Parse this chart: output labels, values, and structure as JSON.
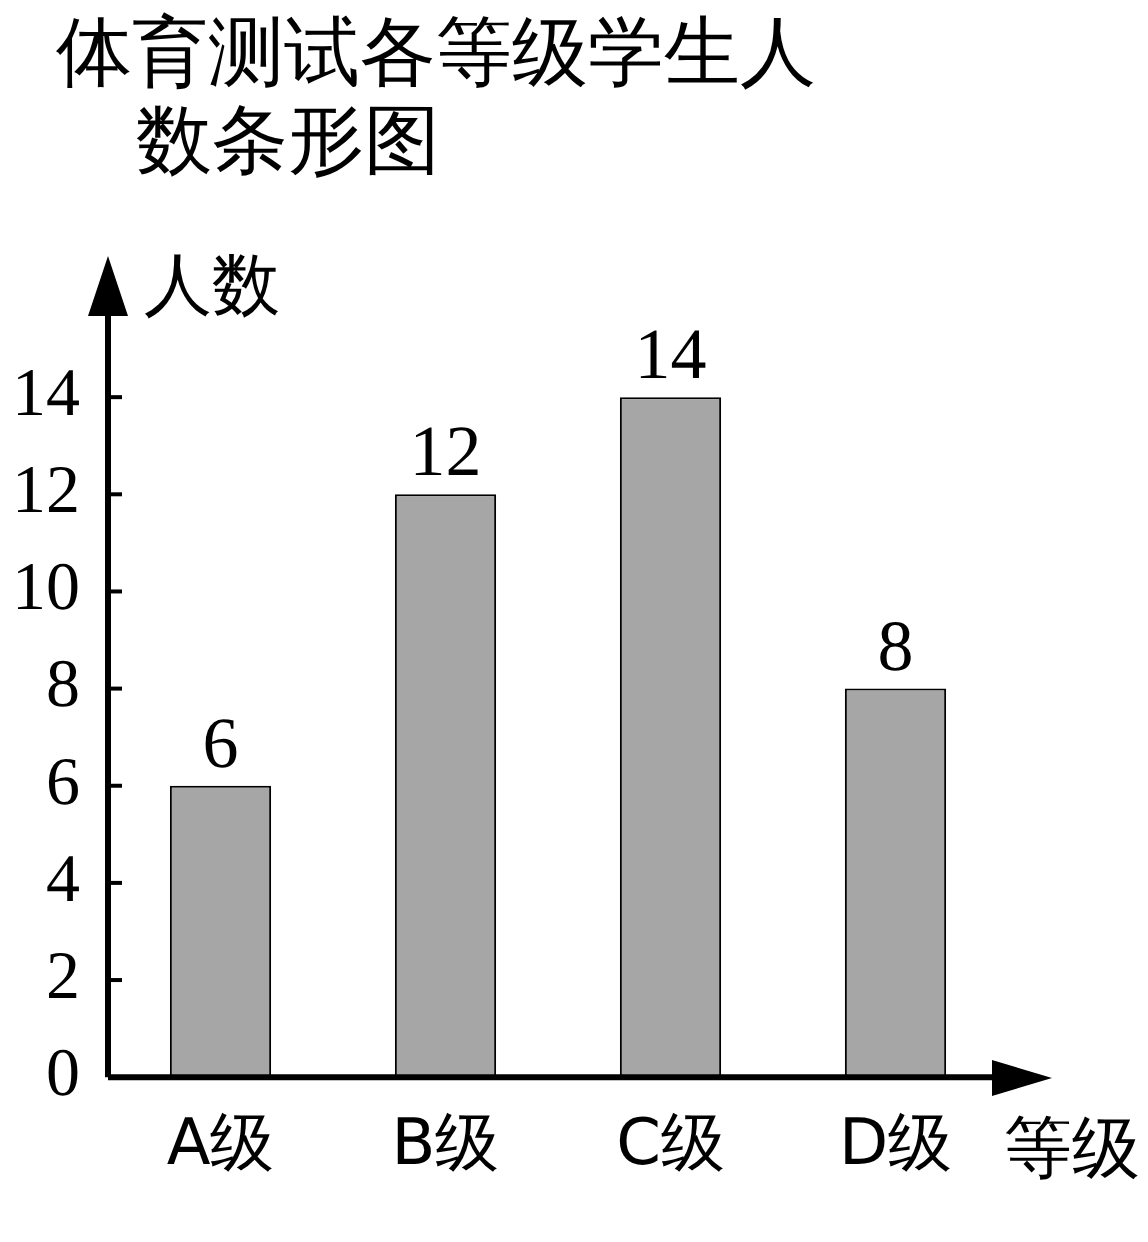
{
  "chart_data": {
    "type": "bar",
    "title": "体育测试各等级学生人数条形图",
    "xlabel": "等级",
    "ylabel": "人数",
    "categories": [
      "A级",
      "B级",
      "C级",
      "D级"
    ],
    "values": [
      6,
      12,
      14,
      8
    ],
    "color": "#a6a6a6",
    "ylim": [
      0,
      16
    ],
    "yticks": [
      0,
      2,
      4,
      6,
      8,
      10,
      12,
      14
    ],
    "data_labels": true
  }
}
